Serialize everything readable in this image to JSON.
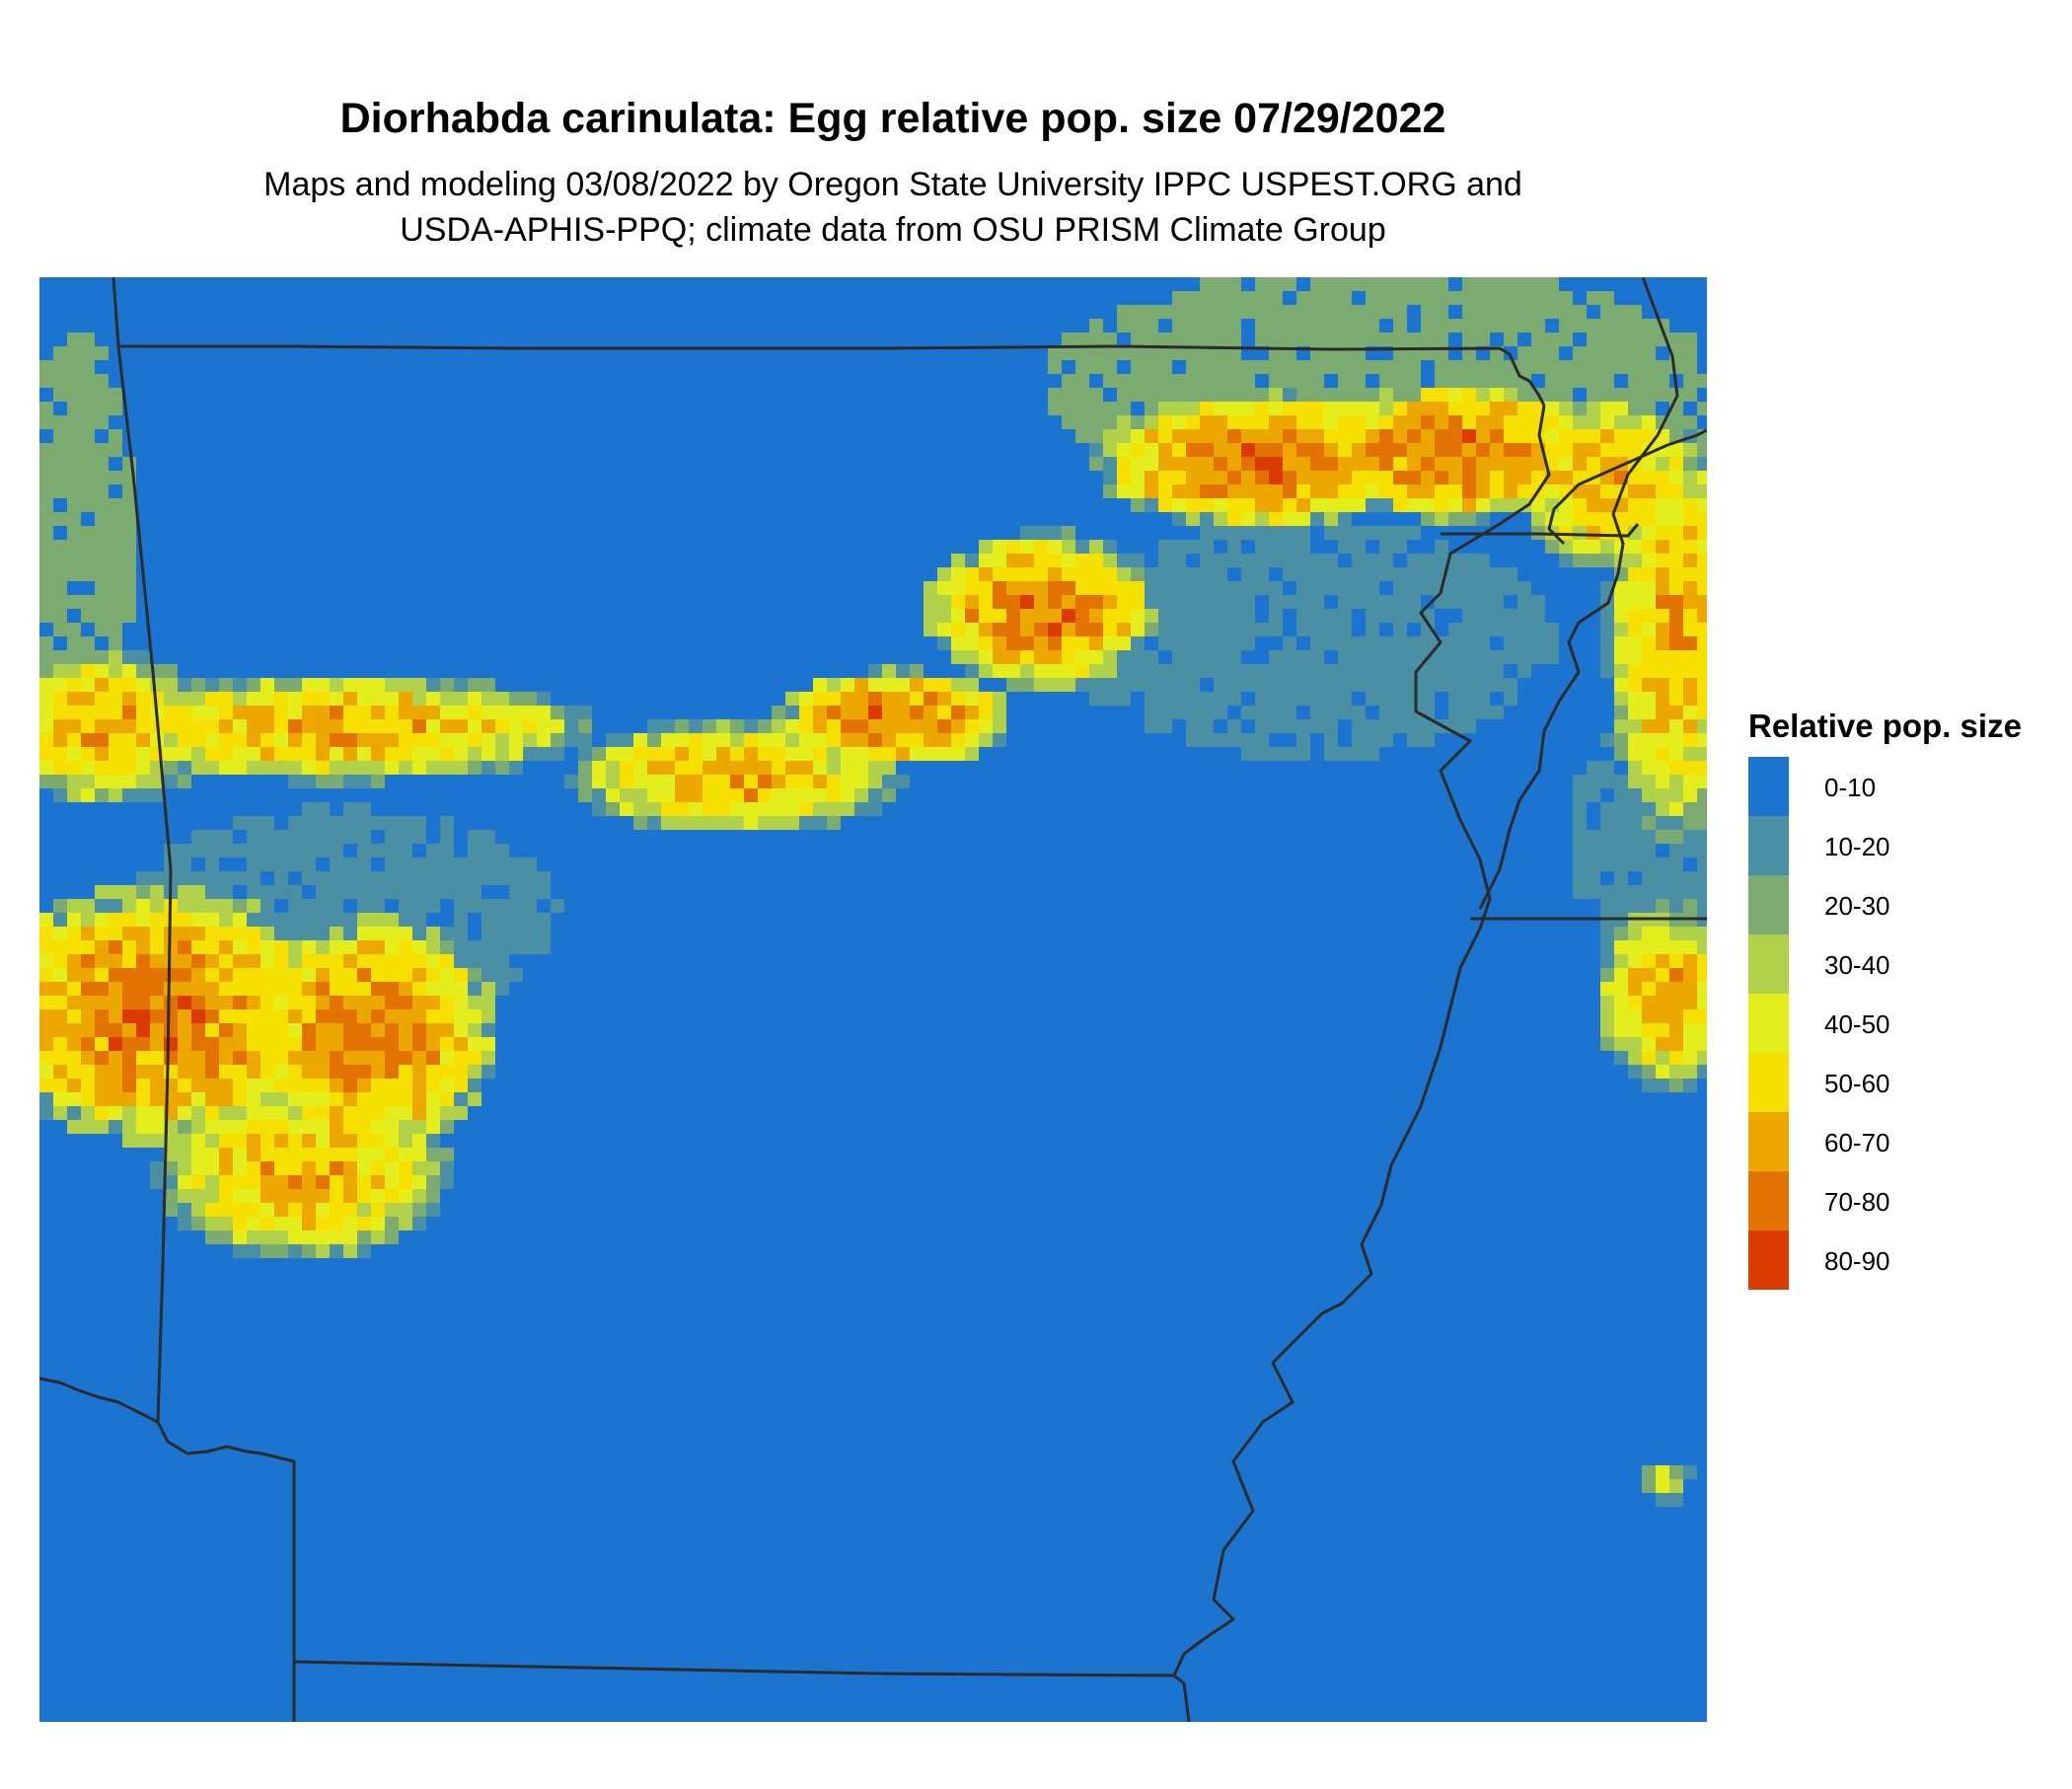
{
  "title": "Diorhabda carinulata: Egg relative pop. size 07/29/2022",
  "subtitle_line1": "Maps and modeling 03/08/2022 by Oregon State University IPPC USPEST.ORG and",
  "subtitle_line2": "USDA-APHIS-PPQ; climate data from OSU PRISM Climate Group",
  "legend": {
    "title": "Relative pop. size",
    "items": [
      {
        "label": "0-10",
        "color": "#1a74d0"
      },
      {
        "label": "10-20",
        "color": "#4a8fa3"
      },
      {
        "label": "20-30",
        "color": "#7bab70"
      },
      {
        "label": "30-40",
        "color": "#b2d14a"
      },
      {
        "label": "40-50",
        "color": "#e4ee1c"
      },
      {
        "label": "50-60",
        "color": "#f6e000"
      },
      {
        "label": "60-70",
        "color": "#eda800"
      },
      {
        "label": "70-80",
        "color": "#e37300"
      },
      {
        "label": "80-90",
        "color": "#db3a00"
      }
    ]
  },
  "map": {
    "background_class": "0-10",
    "boundary_color": "#2b2b2b"
  }
}
